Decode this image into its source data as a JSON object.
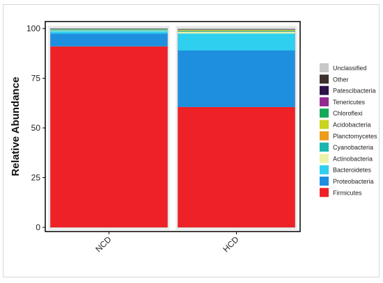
{
  "chart_data": {
    "type": "bar",
    "stacked": true,
    "categories": [
      "NCD",
      "HCD"
    ],
    "ylabel": "Relative Abundance",
    "xlabel": "",
    "ylim": [
      0,
      100
    ],
    "yticks": [
      0,
      25,
      50,
      75,
      100
    ],
    "legend_position": "right",
    "grid": false,
    "series": [
      {
        "name": "Firmicutes",
        "color": "#ee2226",
        "values": [
          91.0,
          60.5
        ]
      },
      {
        "name": "Proteobacteria",
        "color": "#1e8fde",
        "values": [
          6.5,
          28.5
        ]
      },
      {
        "name": "Bacteroidetes",
        "color": "#2fd0ef",
        "values": [
          1.2,
          8.5
        ]
      },
      {
        "name": "Actinobacteria",
        "color": "#ecf2a8",
        "values": [
          0.3,
          0.8
        ]
      },
      {
        "name": "Cyanobacteria",
        "color": "#17b7b0",
        "values": [
          0.5,
          0.4
        ]
      },
      {
        "name": "Planctomycetes",
        "color": "#ec9b1a",
        "values": [
          0.1,
          0.2
        ]
      },
      {
        "name": "Acidobacteria",
        "color": "#c9d41d",
        "values": [
          0.1,
          0.3
        ]
      },
      {
        "name": "Chloroflexi",
        "color": "#15a85a",
        "values": [
          0.1,
          0.2
        ]
      },
      {
        "name": "Tenericutes",
        "color": "#922a8f",
        "values": [
          0.1,
          0.1
        ]
      },
      {
        "name": "Patescibacteria",
        "color": "#2d0f4a",
        "values": [
          0.05,
          0.05
        ]
      },
      {
        "name": "Other",
        "color": "#3b302b",
        "values": [
          0.05,
          0.1
        ]
      },
      {
        "name": "Unclassified",
        "color": "#c8c8c8",
        "values": [
          0.1,
          0.4
        ]
      }
    ]
  }
}
